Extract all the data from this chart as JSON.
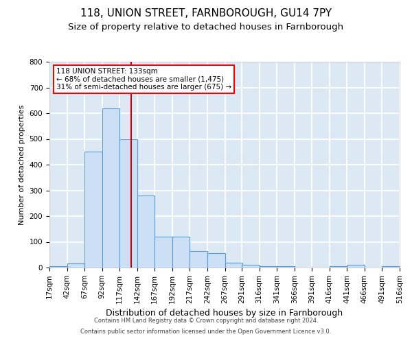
{
  "title": "118, UNION STREET, FARNBOROUGH, GU14 7PY",
  "subtitle": "Size of property relative to detached houses in Farnborough",
  "xlabel": "Distribution of detached houses by size in Farnborough",
  "ylabel": "Number of detached properties",
  "footer_line1": "Contains HM Land Registry data © Crown copyright and database right 2024.",
  "footer_line2": "Contains public sector information licensed under the Open Government Licence v3.0.",
  "bar_color": "#cce0f5",
  "bar_edge_color": "#5b9bd5",
  "bg_color": "#dce9f5",
  "grid_color": "#ffffff",
  "property_line_x": 133,
  "annotation_text_line1": "118 UNION STREET: 133sqm",
  "annotation_text_line2": "← 68% of detached houses are smaller (1,475)",
  "annotation_text_line3": "31% of semi-detached houses are larger (675) →",
  "bin_edges": [
    17,
    42,
    67,
    92,
    117,
    142,
    167,
    192,
    217,
    242,
    267,
    291,
    316,
    341,
    366,
    391,
    416,
    441,
    466,
    491,
    516
  ],
  "bar_heights": [
    5,
    15,
    450,
    620,
    500,
    280,
    120,
    120,
    65,
    55,
    20,
    10,
    5,
    5,
    0,
    0,
    5,
    10,
    0,
    5
  ],
  "ylim": [
    0,
    800
  ],
  "yticks": [
    0,
    100,
    200,
    300,
    400,
    500,
    600,
    700,
    800
  ],
  "title_fontsize": 11,
  "subtitle_fontsize": 9.5,
  "ylabel_fontsize": 8,
  "xlabel_fontsize": 9,
  "tick_fontsize": 7.5,
  "footer_fontsize": 6,
  "annotation_fontsize": 7.5
}
